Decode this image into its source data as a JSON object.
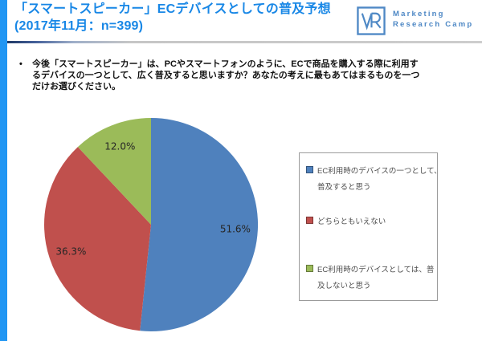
{
  "header": {
    "title_line1": "「スマートスピーカー」ECデバイスとしての普及予想",
    "title_line2": "(2017年11月：n=399)",
    "accent_color": "#2196F3",
    "title_color": "#1887E6"
  },
  "logo": {
    "name": "marketing-research-camp-logo",
    "text_line1": "Marketing",
    "text_line2": "Research Camp",
    "color": "#4E88C5"
  },
  "question": {
    "bullet": "•",
    "lines": [
      "今後「スマートスピーカー」は、PCやスマートフォンのように、ECで商品を購入する際に利用す",
      "るデバイスの一つとして、広く普及すると思いますか？あなたの考えに最もあてはまるものを一つ",
      "だけお選びください。"
    ]
  },
  "chart_data": {
    "type": "pie",
    "title": "「スマートスピーカー」ECデバイスとしての普及予想（2017年11月：n=399）",
    "categories": [
      "EC利用時のデバイスの一つとして、普及すると思う",
      "どちらともいえない",
      "EC利用時のデバイスとしては、普及しないと思う"
    ],
    "values": [
      51.6,
      36.3,
      12.0
    ],
    "value_labels": [
      "51.6%",
      "36.3%",
      "12.0%"
    ],
    "colors": [
      "#4F81BD",
      "#C0504D",
      "#9BBB59"
    ],
    "start_angle_deg": 0,
    "direction": "clockwise",
    "legend_position": "right",
    "legend_lines": [
      [
        "EC利用時のデバイスの一つとして、",
        "普及すると思う"
      ],
      [
        "どちらともいえない"
      ],
      [
        "EC利用時のデバイスとしては、普",
        "及しないと思う"
      ]
    ]
  }
}
